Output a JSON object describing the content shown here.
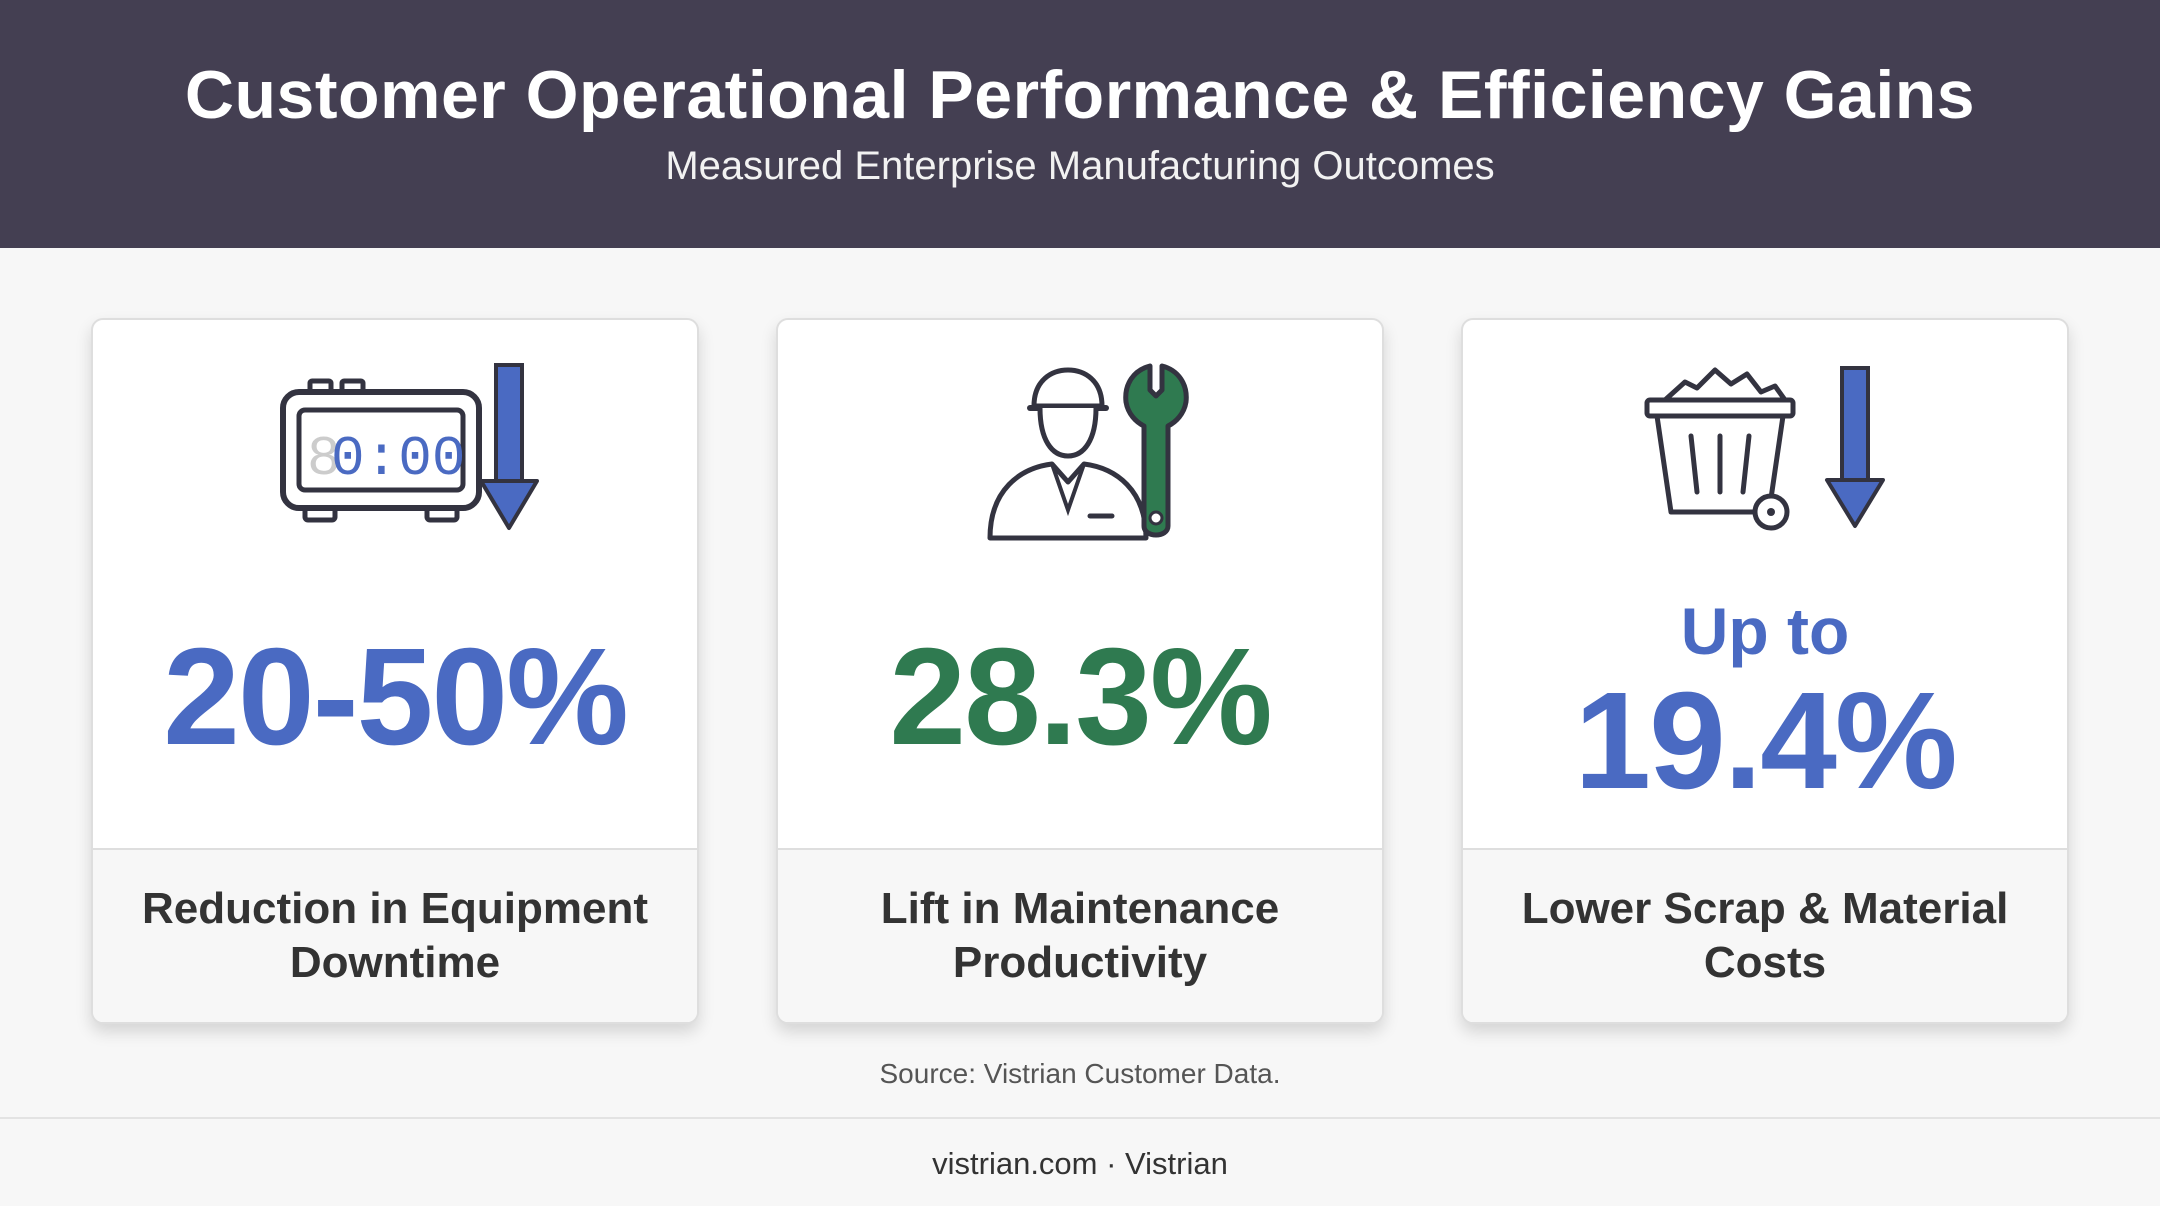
{
  "header": {
    "title": "Customer Operational Performance & Efficiency Gains",
    "subtitle": "Measured Enterprise Manufacturing Outcomes"
  },
  "colors": {
    "header_bg": "#443f52",
    "accent_blue": "#4a6ac2",
    "accent_green": "#2f7a50",
    "icon_stroke": "#333340"
  },
  "cards": [
    {
      "icon": "alarm-clock-down-arrow-icon",
      "stat": "20-50%",
      "label": "Reduction in Equipment Downtime",
      "clock_display": "0:00",
      "clock_ghost_digit": "8"
    },
    {
      "icon": "technician-wrench-icon",
      "stat": "28.3%",
      "label": "Lift in Maintenance Productivity"
    },
    {
      "icon": "scrap-bin-down-arrow-icon",
      "stat_prefix": "Up to",
      "stat": "19.4%",
      "label": "Lower Scrap & Material Costs"
    }
  ],
  "source": "Source: Vistrian Customer Data.",
  "footer": "vistrian.com · Vistrian"
}
